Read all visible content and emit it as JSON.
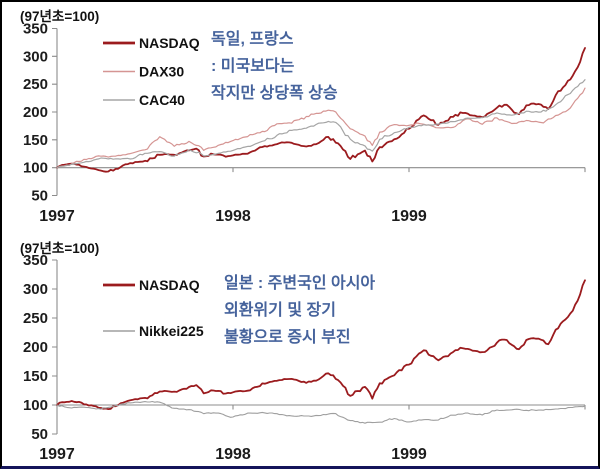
{
  "page": {
    "background": "#ffffff",
    "border_color": "#000000",
    "bottom_border_color": "#14145a"
  },
  "chart_data": [
    {
      "type": "line",
      "header": "(97년초=100)",
      "ylim": [
        50,
        350
      ],
      "y_ticks": [
        "350",
        "300",
        "250",
        "200",
        "150",
        "100",
        "50"
      ],
      "x_labels": [
        "1997",
        "1998",
        "1999"
      ],
      "axis_cross_value": 100,
      "grid": false,
      "legend_position": "inside-top-left",
      "x_start_months": 0,
      "x_step_months": 0.5,
      "annotation": {
        "color": "#46639c",
        "lines": [
          "독일, 프랑스",
          ": 미국보다는",
          "작지만 상당폭 상승"
        ]
      },
      "series": [
        {
          "name": "NASDAQ",
          "color": "#9b1b1e",
          "width": 1.8,
          "legend_width": 2.8,
          "values": [
            100,
            105,
            107,
            105,
            101,
            98,
            95,
            93,
            98,
            104,
            108,
            110,
            112,
            117,
            123,
            124,
            123,
            127,
            131,
            134,
            120,
            125,
            124,
            120,
            122,
            124,
            125,
            131,
            137,
            140,
            142,
            145,
            145,
            141,
            138,
            142,
            147,
            155,
            145,
            133,
            116,
            124,
            131,
            111,
            137,
            145,
            151,
            160,
            170,
            184,
            194,
            185,
            177,
            184,
            191,
            199,
            197,
            193,
            191,
            199,
            208,
            213,
            204,
            196,
            212,
            215,
            213,
            205,
            230,
            244,
            258,
            280,
            315
          ]
        },
        {
          "name": "DAX30",
          "color": "#d59593",
          "width": 1.2,
          "legend_width": 1.5,
          "values": [
            100,
            103,
            107,
            111,
            115,
            118,
            121,
            119,
            121,
            123,
            125,
            129,
            132,
            145,
            156,
            146,
            138,
            143,
            147,
            140,
            131,
            136,
            140,
            145,
            149,
            152,
            156,
            161,
            165,
            172,
            179,
            180,
            180,
            186,
            192,
            196,
            198,
            203,
            200,
            185,
            170,
            163,
            157,
            140,
            164,
            171,
            177,
            176,
            176,
            180,
            178,
            175,
            172,
            172,
            172,
            180,
            188,
            183,
            178,
            184,
            189,
            184,
            179,
            182,
            185,
            183,
            181,
            187,
            194,
            200,
            207,
            225,
            243
          ]
        },
        {
          "name": "CAC40",
          "color": "#a5a5a5",
          "width": 1.2,
          "legend_width": 1.5,
          "values": [
            100,
            103,
            106,
            108,
            111,
            114,
            117,
            116,
            116,
            116,
            116,
            121,
            126,
            128,
            129,
            125,
            121,
            126,
            132,
            127,
            121,
            123,
            126,
            128,
            131,
            134,
            138,
            142,
            147,
            152,
            158,
            162,
            167,
            169,
            171,
            175,
            180,
            183,
            181,
            166,
            151,
            145,
            139,
            130,
            151,
            157,
            163,
            167,
            172,
            174,
            177,
            177,
            178,
            180,
            183,
            186,
            189,
            189,
            190,
            194,
            198,
            196,
            194,
            197,
            201,
            200,
            200,
            206,
            213,
            223,
            233,
            246,
            258
          ]
        }
      ]
    },
    {
      "type": "line",
      "header": "(97년초=100)",
      "ylim": [
        50,
        350
      ],
      "y_ticks": [
        "350",
        "300",
        "250",
        "200",
        "150",
        "100",
        "50"
      ],
      "x_labels": [
        "1997",
        "1998",
        "1999"
      ],
      "axis_cross_value": 100,
      "grid": false,
      "legend_position": "inside-top-left",
      "x_start_months": 0,
      "x_step_months": 0.5,
      "annotation": {
        "color": "#46639c",
        "lines": [
          "일본 : 주변국인 아시아",
          "외환위기 및 장기",
          "불황으로 증시 부진"
        ]
      },
      "series": [
        {
          "name": "NASDAQ",
          "color": "#9b1b1e",
          "width": 1.8,
          "legend_width": 2.8,
          "values": [
            100,
            105,
            107,
            105,
            101,
            98,
            95,
            93,
            98,
            104,
            108,
            110,
            112,
            117,
            123,
            124,
            123,
            127,
            131,
            134,
            120,
            125,
            124,
            120,
            122,
            124,
            125,
            131,
            137,
            140,
            142,
            145,
            145,
            141,
            138,
            142,
            147,
            155,
            145,
            133,
            116,
            124,
            131,
            111,
            137,
            145,
            151,
            160,
            170,
            184,
            194,
            185,
            177,
            184,
            191,
            199,
            197,
            193,
            191,
            199,
            208,
            213,
            204,
            196,
            212,
            215,
            213,
            205,
            230,
            244,
            258,
            280,
            315
          ]
        },
        {
          "name": "Nikkei225",
          "color": "#9f9f9f",
          "width": 1.1,
          "legend_width": 1.4,
          "values": [
            100,
            97,
            95,
            96,
            96,
            94,
            93,
            96,
            99,
            102,
            104,
            105,
            106,
            106,
            105,
            99,
            94,
            93,
            92,
            89,
            85,
            86,
            86,
            82,
            79,
            83,
            86,
            86,
            87,
            86,
            85,
            83,
            81,
            81,
            81,
            81,
            82,
            84,
            85,
            79,
            73,
            71,
            69,
            70,
            70,
            74,
            77,
            74,
            71,
            73,
            75,
            74,
            74,
            78,
            82,
            84,
            86,
            84,
            83,
            87,
            91,
            91,
            92,
            92,
            91,
            91,
            91,
            92,
            93,
            94,
            96,
            97,
            98
          ]
        }
      ]
    }
  ]
}
